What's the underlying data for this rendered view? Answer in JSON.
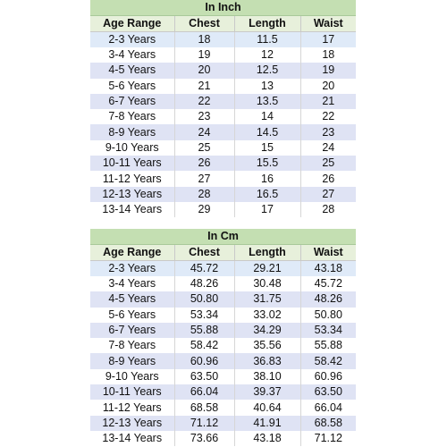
{
  "inch": {
    "title": "In Inch",
    "headers": [
      "Age Range",
      "Chest",
      "Length",
      "Waist"
    ],
    "rows": [
      [
        "2-3 Years",
        "18",
        "11.5",
        "17"
      ],
      [
        "3-4 Years",
        "19",
        "12",
        "18"
      ],
      [
        "4-5 Years",
        "20",
        "12.5",
        "19"
      ],
      [
        "5-6 Years",
        "21",
        "13",
        "20"
      ],
      [
        "6-7 Years",
        "22",
        "13.5",
        "21"
      ],
      [
        "7-8 Years",
        "23",
        "14",
        "22"
      ],
      [
        "8-9 Years",
        "24",
        "14.5",
        "23"
      ],
      [
        "9-10 Years",
        "25",
        "15",
        "24"
      ],
      [
        "10-11 Years",
        "26",
        "15.5",
        "25"
      ],
      [
        "11-12 Years",
        "27",
        "16",
        "26"
      ],
      [
        "12-13 Years",
        "28",
        "16.5",
        "27"
      ],
      [
        "13-14 Years",
        "29",
        "17",
        "28"
      ]
    ]
  },
  "cm": {
    "title": "In Cm",
    "headers": [
      "Age Range",
      "Chest",
      "Length",
      "Waist"
    ],
    "rows": [
      [
        "2-3 Years",
        "45.72",
        "29.21",
        "43.18"
      ],
      [
        "3-4 Years",
        "48.26",
        "30.48",
        "45.72"
      ],
      [
        "4-5 Years",
        "50.80",
        "31.75",
        "48.26"
      ],
      [
        "5-6 Years",
        "53.34",
        "33.02",
        "50.80"
      ],
      [
        "6-7 Years",
        "55.88",
        "34.29",
        "53.34"
      ],
      [
        "7-8 Years",
        "58.42",
        "35.56",
        "55.88"
      ],
      [
        "8-9 Years",
        "60.96",
        "36.83",
        "58.42"
      ],
      [
        "9-10 Years",
        "63.50",
        "38.10",
        "60.96"
      ],
      [
        "10-11 Years",
        "66.04",
        "39.37",
        "63.50"
      ],
      [
        "11-12 Years",
        "68.58",
        "40.64",
        "66.04"
      ],
      [
        "12-13 Years",
        "71.12",
        "41.91",
        "68.58"
      ],
      [
        "13-14 Years",
        "73.66",
        "43.18",
        "71.12"
      ]
    ]
  }
}
